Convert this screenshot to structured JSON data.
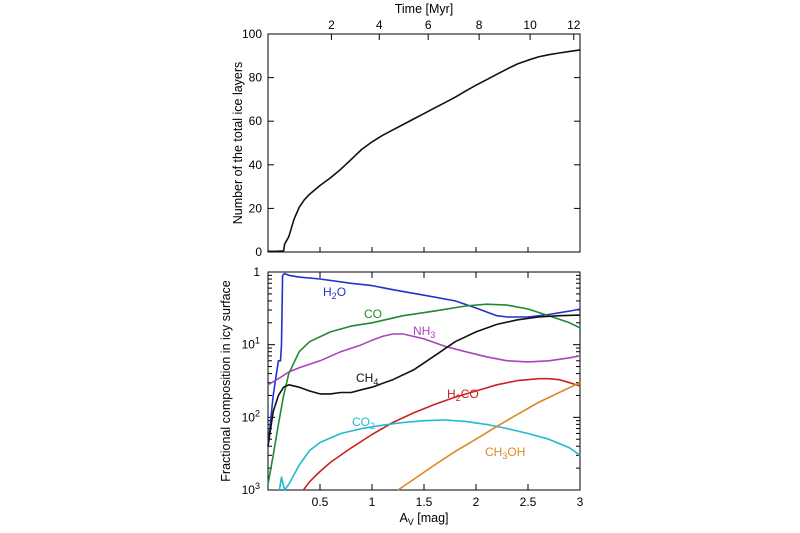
{
  "chart_data": [
    {
      "type": "line",
      "xlabel": "A_V [mag]",
      "x2label": "Time [Myr]",
      "ylabel": "Number of the total ice layers",
      "xlim": [
        0,
        3
      ],
      "ylim": [
        0,
        100
      ],
      "x_ticks_bottom": [],
      "top_ticks": [
        {
          "label": "2",
          "av": 0.61
        },
        {
          "label": "4",
          "av": 1.07
        },
        {
          "label": "6",
          "av": 1.54
        },
        {
          "label": "8",
          "av": 2.03
        },
        {
          "label": "10",
          "av": 2.52
        },
        {
          "label": "12",
          "av": 2.94
        }
      ],
      "y_ticks": [
        0,
        20,
        40,
        60,
        80,
        100
      ],
      "series": [
        {
          "color": "#111111",
          "x": [
            0.0,
            0.08,
            0.15,
            0.16,
            0.17,
            0.2,
            0.25,
            0.3,
            0.35,
            0.4,
            0.5,
            0.6,
            0.7,
            0.8,
            0.9,
            1.0,
            1.1,
            1.2,
            1.3,
            1.4,
            1.5,
            1.6,
            1.7,
            1.8,
            1.9,
            2.0,
            2.1,
            2.2,
            2.3,
            2.4,
            2.5,
            2.6,
            2.7,
            2.8,
            2.9,
            3.0
          ],
          "y": [
            0.3,
            0.3,
            0.5,
            3.5,
            4.5,
            7,
            15,
            20.5,
            24,
            26.5,
            30.5,
            34,
            38,
            42.5,
            47,
            50.5,
            53.5,
            56,
            58.5,
            61,
            63.5,
            66,
            68.5,
            71,
            73.8,
            76.5,
            79,
            81.5,
            84,
            86.3,
            88,
            89.5,
            90.5,
            91.3,
            92,
            92.7
          ]
        }
      ]
    },
    {
      "type": "line",
      "xlabel": "A_V [mag]",
      "ylabel": "Fractional composition in icy surface",
      "xlim": [
        0,
        3
      ],
      "ylim": [
        0.001,
        1
      ],
      "yscale": "log",
      "x_ticks": [
        "0.5",
        "1",
        "1.5",
        "2",
        "2.5",
        "3"
      ],
      "x_tick_values": [
        0.5,
        1,
        1.5,
        2,
        2.5,
        3
      ],
      "y_tick_labels": [
        "1",
        "10^-1",
        "10^-2",
        "10^-3"
      ],
      "series": [
        {
          "name": "H2O",
          "color": "#2233cc",
          "x": [
            0.0,
            0.05,
            0.1,
            0.12,
            0.13,
            0.14,
            0.16,
            0.2,
            0.3,
            0.5,
            0.8,
            1.0,
            1.2,
            1.5,
            1.8,
            2.0,
            2.2,
            2.3,
            2.5,
            2.7,
            2.9,
            3.0
          ],
          "y": [
            0.004,
            0.02,
            0.06,
            0.06,
            0.1,
            0.9,
            0.95,
            0.9,
            0.85,
            0.8,
            0.7,
            0.65,
            0.57,
            0.48,
            0.4,
            0.32,
            0.25,
            0.24,
            0.24,
            0.26,
            0.29,
            0.31
          ]
        },
        {
          "name": "CO",
          "color": "#228833",
          "x": [
            0.0,
            0.05,
            0.1,
            0.15,
            0.2,
            0.3,
            0.4,
            0.6,
            0.8,
            1.0,
            1.3,
            1.6,
            1.9,
            2.1,
            2.3,
            2.5,
            2.7,
            2.9,
            3.0
          ],
          "y": [
            0.0012,
            0.003,
            0.008,
            0.02,
            0.04,
            0.08,
            0.11,
            0.15,
            0.18,
            0.2,
            0.25,
            0.29,
            0.34,
            0.36,
            0.35,
            0.31,
            0.25,
            0.2,
            0.17
          ]
        },
        {
          "name": "NH3",
          "color": "#aa44bb",
          "x": [
            0.0,
            0.1,
            0.2,
            0.3,
            0.5,
            0.7,
            0.9,
            1.0,
            1.1,
            1.2,
            1.3,
            1.5,
            1.7,
            1.9,
            2.1,
            2.3,
            2.5,
            2.7,
            2.9,
            3.0
          ],
          "y": [
            0.028,
            0.034,
            0.042,
            0.048,
            0.06,
            0.08,
            0.1,
            0.115,
            0.13,
            0.14,
            0.14,
            0.12,
            0.095,
            0.08,
            0.068,
            0.06,
            0.058,
            0.06,
            0.066,
            0.07
          ]
        },
        {
          "name": "CH4",
          "color": "#111111",
          "x": [
            0.0,
            0.05,
            0.1,
            0.15,
            0.2,
            0.3,
            0.4,
            0.5,
            0.6,
            0.7,
            0.8,
            0.9,
            1.0,
            1.2,
            1.4,
            1.6,
            1.8,
            2.0,
            2.2,
            2.4,
            2.6,
            2.8,
            3.0
          ],
          "y": [
            0.004,
            0.012,
            0.02,
            0.026,
            0.028,
            0.026,
            0.023,
            0.021,
            0.021,
            0.022,
            0.022,
            0.024,
            0.026,
            0.033,
            0.045,
            0.07,
            0.11,
            0.15,
            0.19,
            0.22,
            0.24,
            0.25,
            0.255
          ]
        },
        {
          "name": "H2CO",
          "color": "#cc2222",
          "x": [
            0.34,
            0.4,
            0.5,
            0.6,
            0.8,
            1.0,
            1.2,
            1.4,
            1.6,
            1.8,
            2.0,
            2.2,
            2.4,
            2.6,
            2.7,
            2.8,
            2.9,
            3.0
          ],
          "y": [
            0.001,
            0.0013,
            0.0018,
            0.0024,
            0.0038,
            0.0058,
            0.0085,
            0.0115,
            0.015,
            0.019,
            0.023,
            0.028,
            0.032,
            0.034,
            0.034,
            0.033,
            0.03,
            0.027
          ]
        },
        {
          "name": "CO2",
          "color": "#22bbcc",
          "x": [
            0.11,
            0.13,
            0.16,
            0.2,
            0.3,
            0.4,
            0.5,
            0.7,
            0.9,
            1.1,
            1.3,
            1.5,
            1.7,
            1.9,
            2.1,
            2.3,
            2.5,
            2.7,
            2.9,
            3.0
          ],
          "y": [
            0.001,
            0.0015,
            0.001,
            0.0012,
            0.0022,
            0.0035,
            0.0045,
            0.006,
            0.007,
            0.0078,
            0.0085,
            0.009,
            0.0092,
            0.0088,
            0.008,
            0.007,
            0.006,
            0.005,
            0.0038,
            0.003
          ]
        },
        {
          "name": "CH3OH",
          "color": "#dd8822",
          "x": [
            1.25,
            1.4,
            1.6,
            1.8,
            2.0,
            2.2,
            2.4,
            2.6,
            2.8,
            3.0
          ],
          "y": [
            0.001,
            0.0014,
            0.0022,
            0.0034,
            0.005,
            0.0075,
            0.011,
            0.016,
            0.022,
            0.03
          ]
        }
      ]
    }
  ]
}
